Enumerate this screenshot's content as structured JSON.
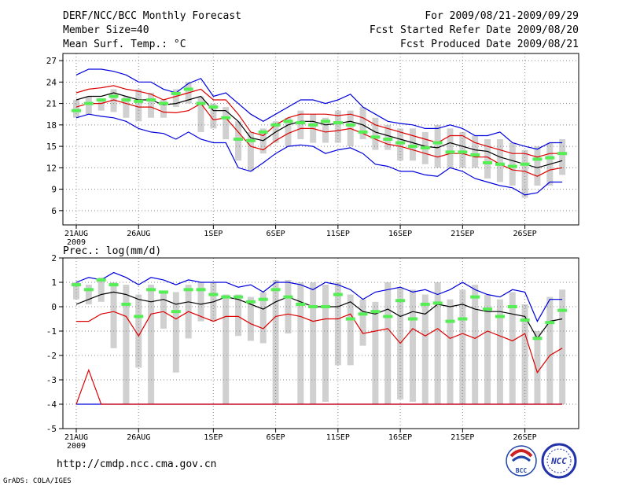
{
  "header": {
    "title": "DERF/NCC/BCC Monthly Forecast",
    "member": "Member Size=40",
    "variable": "Mean Surf. Temp.: °C",
    "period": "For 2009/08/21-2009/09/29",
    "refer": "Fcst Started Refer Date 2009/08/20",
    "produced": "Fcst Produced Date 2009/08/21"
  },
  "footer": {
    "url": "http://cmdp.ncc.cma.gov.cn",
    "grads": "GrADS: COLA/IGES",
    "logo_bcc": "BCC",
    "logo_ncc": "NCC"
  },
  "colors": {
    "max_min": "#0000dd",
    "sd": "#dd0000",
    "mean": "#000000",
    "ens": "#55ee55",
    "bar": "#d0d0d0",
    "grid": "#888888"
  },
  "chart_data": [
    {
      "type": "line",
      "name": "temperature",
      "title": "",
      "ylim": [
        4,
        28
      ],
      "yticks": [
        6,
        9,
        12,
        15,
        18,
        21,
        24,
        27
      ],
      "xticks": [
        {
          "i": 0,
          "label": "21AUG",
          "sub": "2009"
        },
        {
          "i": 5,
          "label": "26AUG"
        },
        {
          "i": 11,
          "label": "1SEP"
        },
        {
          "i": 16,
          "label": "6SEP"
        },
        {
          "i": 21,
          "label": "11SEP"
        },
        {
          "i": 26,
          "label": "16SEP"
        },
        {
          "i": 31,
          "label": "21SEP"
        },
        {
          "i": 36,
          "label": "26SEP"
        }
      ],
      "days": 40,
      "series": [
        {
          "name": "max",
          "color": "#0000dd",
          "values": [
            25,
            25.8,
            25.8,
            25.5,
            25,
            24,
            24,
            23,
            22.5,
            23.8,
            24.5,
            22,
            22.5,
            21,
            19.5,
            18.5,
            19.5,
            20.5,
            21.5,
            21.5,
            21,
            21.5,
            22.3,
            20.5,
            19.5,
            18.5,
            18.2,
            18,
            17.5,
            17.5,
            18,
            17.5,
            16.5,
            16.5,
            17,
            15.5,
            15,
            14.6,
            15.5,
            15.5
          ]
        },
        {
          "name": "sd_upper",
          "color": "#dd0000",
          "values": [
            22.5,
            23,
            23.2,
            23.5,
            23,
            22.7,
            22.3,
            21.5,
            22,
            22.5,
            23,
            21.5,
            21.5,
            19.5,
            17,
            16.5,
            18,
            19,
            19.5,
            19.5,
            19.5,
            19.3,
            19.5,
            19,
            18,
            17.5,
            17,
            16.5,
            16,
            15.5,
            16.5,
            16.5,
            15.5,
            15,
            14.5,
            14,
            14,
            13.5,
            14,
            14
          ]
        },
        {
          "name": "mean",
          "color": "#000000",
          "values": [
            21.5,
            22,
            22,
            22.5,
            22,
            21.5,
            21.5,
            20.8,
            21,
            21.5,
            22,
            20,
            20,
            18.5,
            16.2,
            15.8,
            17,
            18,
            18.5,
            18.5,
            18,
            18.2,
            18.5,
            18,
            17,
            16.5,
            16,
            15.5,
            15,
            14.8,
            15.5,
            15,
            14.5,
            14.3,
            13.5,
            13,
            12.5,
            12,
            12.5,
            13
          ]
        },
        {
          "name": "sd_lower",
          "color": "#dd0000",
          "values": [
            20.5,
            21,
            21,
            21.5,
            21,
            20.5,
            20.5,
            19.8,
            19.7,
            20,
            21,
            18.7,
            19,
            17,
            15,
            14.5,
            15.8,
            16.8,
            17.5,
            17.5,
            17,
            17.2,
            17.5,
            16.8,
            16,
            15.3,
            15,
            14.5,
            14,
            13.5,
            14,
            14,
            13.5,
            13.5,
            12.5,
            11.7,
            11.5,
            10.8,
            11.7,
            12
          ]
        },
        {
          "name": "min",
          "color": "#0000dd",
          "values": [
            19,
            19.5,
            19.2,
            19,
            18.5,
            17.5,
            17,
            16.8,
            16,
            17,
            16,
            15.5,
            15.5,
            12,
            11.5,
            12.7,
            14,
            15,
            15.2,
            15,
            14,
            14.5,
            14.8,
            14,
            12.5,
            12.2,
            11.5,
            11.5,
            11,
            10.8,
            12,
            11.5,
            10.5,
            10,
            9.5,
            9.2,
            8.2,
            8.5,
            10,
            10
          ]
        }
      ],
      "ensemble": [
        20,
        21,
        21.5,
        22,
        21.5,
        21.3,
        21.5,
        21,
        22.4,
        23,
        21,
        20.5,
        19,
        16,
        15.8,
        17,
        18,
        18.5,
        18.3,
        18,
        18.5,
        18.3,
        18,
        17,
        16.3,
        16,
        15.5,
        15,
        14.8,
        15.5,
        14.2,
        14.2,
        13.8,
        12.7,
        12.5,
        12.2,
        12.5,
        13.2,
        13.4,
        14
      ],
      "bars": [
        [
          19,
          21.5
        ],
        [
          19.5,
          22
        ],
        [
          20,
          21.5
        ],
        [
          19.8,
          23
        ],
        [
          19,
          22
        ],
        [
          18.5,
          23
        ],
        [
          19,
          22.5
        ],
        [
          19,
          21.5
        ],
        [
          20.5,
          23
        ],
        [
          21,
          24
        ],
        [
          17,
          22
        ],
        [
          17.5,
          21
        ],
        [
          16,
          20.5
        ],
        [
          13,
          18.5
        ],
        [
          11.5,
          17
        ],
        [
          14,
          17.5
        ],
        [
          15.5,
          18.5
        ],
        [
          15,
          19
        ],
        [
          16,
          20
        ],
        [
          15.5,
          19.5
        ],
        [
          15.5,
          19
        ],
        [
          15.5,
          20
        ],
        [
          15,
          20
        ],
        [
          16,
          20.5
        ],
        [
          14.5,
          19
        ],
        [
          14.5,
          18
        ],
        [
          13,
          17.5
        ],
        [
          13,
          17.5
        ],
        [
          12.5,
          17
        ],
        [
          12,
          18
        ],
        [
          12,
          17.5
        ],
        [
          12,
          17
        ],
        [
          12,
          16.5
        ],
        [
          10.5,
          16
        ],
        [
          10,
          16
        ],
        [
          9.5,
          15.5
        ],
        [
          7.8,
          14.5
        ],
        [
          9.5,
          15
        ],
        [
          9.5,
          15.5
        ],
        [
          11,
          16
        ]
      ]
    },
    {
      "type": "line",
      "name": "precipitation",
      "title": "Prec.: log(mm/d)",
      "ylim": [
        -5,
        2
      ],
      "yticks": [
        -5,
        -4,
        -3,
        -2,
        -1,
        0,
        1,
        2
      ],
      "xticks": [
        {
          "i": 0,
          "label": "21AUG",
          "sub": "2009"
        },
        {
          "i": 5,
          "label": "26AUG"
        },
        {
          "i": 11,
          "label": "1SEP"
        },
        {
          "i": 16,
          "label": "6SEP"
        },
        {
          "i": 21,
          "label": "11SEP"
        },
        {
          "i": 26,
          "label": "16SEP"
        },
        {
          "i": 31,
          "label": "21SEP"
        },
        {
          "i": 36,
          "label": "26SEP"
        }
      ],
      "days": 40,
      "series": [
        {
          "name": "max",
          "color": "#0000dd",
          "values": [
            1,
            1.2,
            1.1,
            1.4,
            1.2,
            0.9,
            1.2,
            1.1,
            0.9,
            1.1,
            1,
            1,
            1,
            0.8,
            0.9,
            0.6,
            1,
            1,
            0.9,
            0.7,
            1,
            0.9,
            0.7,
            0.3,
            0.6,
            0.7,
            0.8,
            0.6,
            0.7,
            0.5,
            0.7,
            1,
            0.7,
            0.5,
            0.4,
            0.7,
            0.6,
            -0.6,
            0.3,
            0.3
          ]
        },
        {
          "name": "mean",
          "color": "#000000",
          "values": [
            0.1,
            0.3,
            0.5,
            0.6,
            0.5,
            0.3,
            0.2,
            0.3,
            0.1,
            0.2,
            0.1,
            0.2,
            0.4,
            0.3,
            0.1,
            -0.1,
            0.2,
            0.4,
            0.2,
            0,
            0,
            0,
            0.2,
            -0.2,
            -0.3,
            -0.1,
            -0.4,
            -0.2,
            -0.3,
            0.1,
            0,
            0.1,
            -0.1,
            -0.2,
            -0.2,
            -0.3,
            -0.4,
            -1.3,
            -0.6,
            -0.5
          ]
        },
        {
          "name": "sd_lower",
          "color": "#dd0000",
          "values": [
            -0.6,
            -0.6,
            -0.3,
            -0.2,
            -0.4,
            -1.2,
            -0.3,
            -0.2,
            -0.5,
            -0.2,
            -0.4,
            -0.6,
            -0.4,
            -0.4,
            -0.7,
            -0.9,
            -0.4,
            -0.3,
            -0.4,
            -0.6,
            -0.5,
            -0.5,
            -0.3,
            -1.1,
            -1,
            -0.9,
            -1.5,
            -0.9,
            -1.2,
            -0.9,
            -1.3,
            -1.1,
            -1.3,
            -1,
            -1.2,
            -1.4,
            -1.1,
            -2.7,
            -2,
            -1.7
          ]
        },
        {
          "name": "min",
          "color": "#0000dd",
          "values": [
            -4,
            -4,
            -4,
            -4,
            -4,
            -4,
            -4,
            -4,
            -4,
            -4,
            -4,
            -4,
            -4,
            -4,
            -4,
            -4,
            -4,
            -4,
            -4,
            -4,
            -4,
            -4,
            -4,
            -4,
            -4,
            -4,
            -4,
            -4,
            -4,
            -4,
            -4,
            -4,
            -4,
            -4,
            -4,
            -4,
            -4,
            -4,
            -4,
            -4
          ]
        },
        {
          "name": "sd_low_extra",
          "color": "#dd0000",
          "values": [
            -4,
            -2.6,
            -4,
            -4,
            -4,
            -4,
            -4,
            -4,
            -4,
            -4,
            -4,
            -4,
            -4,
            -4,
            -4,
            -4,
            -4,
            -4,
            -4,
            -4,
            -4,
            -4,
            -4,
            -4,
            -4,
            -4,
            -4,
            -4,
            -4,
            -4,
            -4,
            -4,
            -4,
            -4,
            -4,
            -4,
            -4,
            -4,
            -4,
            -4
          ]
        }
      ],
      "ensemble": [
        0.9,
        0.7,
        1.1,
        0.9,
        0.1,
        -0.4,
        0.7,
        0.6,
        -0.2,
        0.7,
        0.7,
        0.5,
        0.4,
        0.4,
        0.2,
        0.3,
        0.7,
        0.4,
        0.1,
        0,
        0,
        0.5,
        -0.5,
        -0.3,
        -0.2,
        -0.4,
        0.25,
        -0.5,
        0.1,
        0.15,
        -0.6,
        -0.5,
        0.4,
        -0.1,
        -0.4,
        0,
        -0.55,
        -1.3,
        -0.65,
        -0.15
      ],
      "bars": [
        [
          0.3,
          1
        ],
        [
          0.1,
          0.9
        ],
        [
          0.2,
          1.2
        ],
        [
          -1.7,
          1
        ],
        [
          -4,
          0.9
        ],
        [
          -2.5,
          0.5
        ],
        [
          -4,
          0.9
        ],
        [
          -0.9,
          0.6
        ],
        [
          -2.7,
          0.6
        ],
        [
          -1.3,
          0.9
        ],
        [
          -0.6,
          1
        ],
        [
          -0.6,
          1
        ],
        [
          -4,
          0.5
        ],
        [
          -1.2,
          0.5
        ],
        [
          -1.4,
          0.4
        ],
        [
          -1.5,
          0.6
        ],
        [
          -4,
          1.1
        ],
        [
          -1.1,
          1.1
        ],
        [
          -4,
          1
        ],
        [
          -4,
          1
        ],
        [
          -3.9,
          0.9
        ],
        [
          -2.4,
          1
        ],
        [
          -2.4,
          0.5
        ],
        [
          -1.6,
          0.3
        ],
        [
          -4,
          0.2
        ],
        [
          -4,
          1
        ],
        [
          -3.8,
          0.8
        ],
        [
          -3.9,
          0.7
        ],
        [
          -4,
          0.5
        ],
        [
          -4,
          1
        ],
        [
          -4,
          0.3
        ],
        [
          -4,
          0.7
        ],
        [
          -4,
          0.9
        ],
        [
          -4,
          0.5
        ],
        [
          -4,
          0.3
        ],
        [
          -4,
          0.6
        ],
        [
          -4,
          0.1
        ],
        [
          -4,
          -1
        ],
        [
          -4,
          0.4
        ],
        [
          -4,
          0.7
        ]
      ]
    }
  ]
}
